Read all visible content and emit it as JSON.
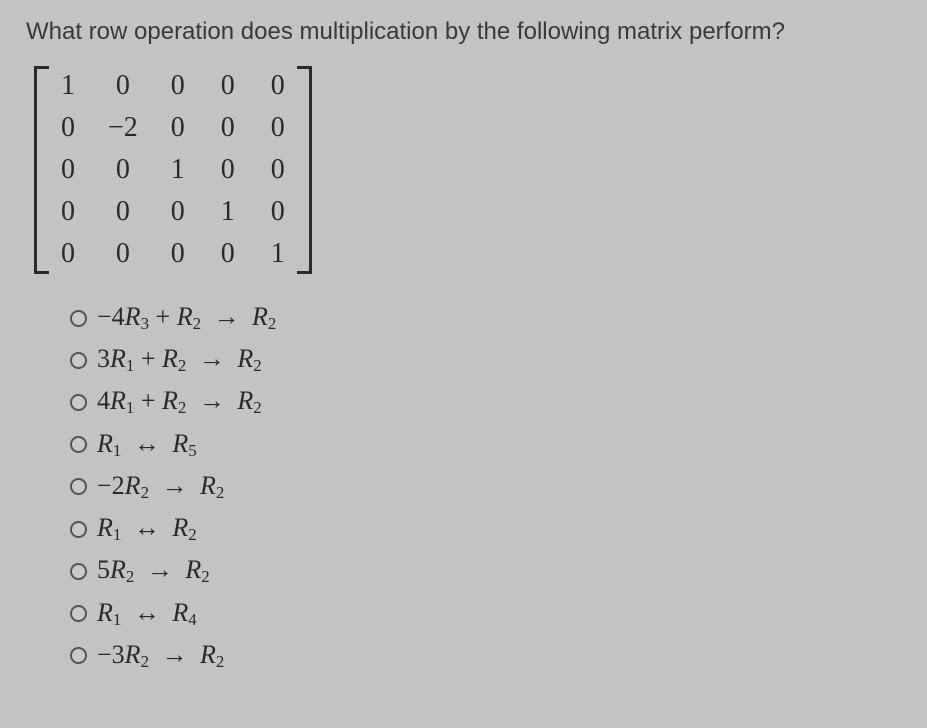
{
  "question": "What row operation does multiplication by the following matrix perform?",
  "matrix": {
    "rows": 5,
    "cols": 5,
    "cells": [
      [
        "1",
        "0",
        "0",
        "0",
        "0"
      ],
      [
        "0",
        "−2",
        "0",
        "0",
        "0"
      ],
      [
        "0",
        "0",
        "1",
        "0",
        "0"
      ],
      [
        "0",
        "0",
        "0",
        "1",
        "0"
      ],
      [
        "0",
        "0",
        "0",
        "0",
        "1"
      ]
    ],
    "font_size": 28,
    "bracket_color": "#2a2a2a"
  },
  "options": [
    {
      "prefix": "−4",
      "terms": [
        [
          "R",
          "3"
        ]
      ],
      "plus": true,
      "terms2": [
        [
          "R",
          "2"
        ]
      ],
      "op": "to",
      "rhs": [
        [
          "R",
          "2"
        ]
      ]
    },
    {
      "prefix": "3",
      "terms": [
        [
          "R",
          "1"
        ]
      ],
      "plus": true,
      "terms2": [
        [
          "R",
          "2"
        ]
      ],
      "op": "to",
      "rhs": [
        [
          "R",
          "2"
        ]
      ]
    },
    {
      "prefix": "4",
      "terms": [
        [
          "R",
          "1"
        ]
      ],
      "plus": true,
      "terms2": [
        [
          "R",
          "2"
        ]
      ],
      "op": "to",
      "rhs": [
        [
          "R",
          "2"
        ]
      ]
    },
    {
      "prefix": "",
      "terms": [
        [
          "R",
          "1"
        ]
      ],
      "plus": false,
      "terms2": [],
      "op": "swap",
      "rhs": [
        [
          "R",
          "5"
        ]
      ]
    },
    {
      "prefix": "−2",
      "terms": [
        [
          "R",
          "2"
        ]
      ],
      "plus": false,
      "terms2": [],
      "op": "to",
      "rhs": [
        [
          "R",
          "2"
        ]
      ]
    },
    {
      "prefix": "",
      "terms": [
        [
          "R",
          "1"
        ]
      ],
      "plus": false,
      "terms2": [],
      "op": "swap",
      "rhs": [
        [
          "R",
          "2"
        ]
      ]
    },
    {
      "prefix": "5",
      "terms": [
        [
          "R",
          "2"
        ]
      ],
      "plus": false,
      "terms2": [],
      "op": "to",
      "rhs": [
        [
          "R",
          "2"
        ]
      ]
    },
    {
      "prefix": "",
      "terms": [
        [
          "R",
          "1"
        ]
      ],
      "plus": false,
      "terms2": [],
      "op": "swap",
      "rhs": [
        [
          "R",
          "4"
        ]
      ]
    },
    {
      "prefix": "−3",
      "terms": [
        [
          "R",
          "2"
        ]
      ],
      "plus": false,
      "terms2": [],
      "op": "to",
      "rhs": [
        [
          "R",
          "2"
        ]
      ]
    }
  ],
  "glyphs": {
    "arrow_right": "→",
    "arrow_swap": "↔",
    "plus": "+"
  },
  "colors": {
    "background": "#c1c4c3",
    "text": "#2a2a2a",
    "radio_border": "#555555"
  },
  "typography": {
    "question_font": "sans-serif",
    "question_size": 24,
    "math_font": "serif",
    "option_size": 26
  }
}
